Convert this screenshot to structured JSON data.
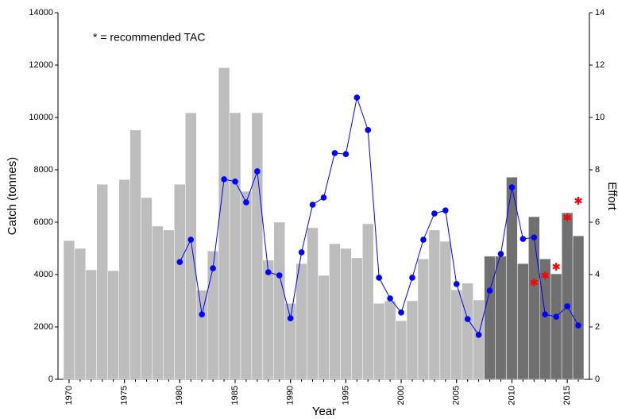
{
  "chart_data": {
    "type": "combo",
    "annotation": "* = recommended TAC",
    "xlabel": "Year",
    "ylabel": "Catch (tonnes)",
    "y2label": "Effort",
    "xlim": [
      1969,
      2017
    ],
    "xticks": [
      1970,
      1975,
      1980,
      1985,
      1990,
      1995,
      2000,
      2005,
      2010,
      2015
    ],
    "ylim": [
      0,
      14000
    ],
    "yticks": [
      0,
      2000,
      4000,
      6000,
      8000,
      10000,
      12000,
      14000
    ],
    "y2lim": [
      0,
      14
    ],
    "y2ticks": [
      0,
      2,
      4,
      6,
      8,
      10,
      12,
      14
    ],
    "series": [
      {
        "type": "bar",
        "color": "#bdbdbd",
        "x": [
          1970,
          1971,
          1972,
          1973,
          1974,
          1975,
          1976,
          1977,
          1978,
          1979,
          1980,
          1981,
          1982,
          1983,
          1984,
          1985,
          1986,
          1987,
          1988,
          1989,
          1990,
          1991,
          1992,
          1993,
          1994,
          1995,
          1996,
          1997,
          1998,
          1999,
          2000,
          2001,
          2002,
          2003,
          2004,
          2005,
          2006,
          2007
        ],
        "values": [
          5300,
          5000,
          4180,
          7450,
          4150,
          7630,
          9520,
          6940,
          5850,
          5700,
          7450,
          10180,
          3400,
          4900,
          11900,
          10180,
          7180,
          10180,
          4550,
          6000,
          2900,
          4420,
          5790,
          3970,
          5180,
          5000,
          4640,
          5940,
          2900,
          3000,
          2240,
          3000,
          4600,
          5700,
          5270,
          3420,
          3670,
          3030
        ]
      },
      {
        "type": "bar",
        "color": "#707070",
        "x": [
          2008,
          2009,
          2010,
          2011,
          2012,
          2013,
          2014,
          2015,
          2016
        ],
        "values": [
          4700,
          4700,
          7720,
          4420,
          6210,
          4600,
          4030,
          6360,
          5480
        ]
      },
      {
        "type": "line",
        "axis": "y2",
        "color": "#0000ff",
        "x": [
          1980,
          1981,
          1982,
          1983,
          1984,
          1985,
          1986,
          1987,
          1988,
          1989,
          1990,
          1991,
          1992,
          1993,
          1994,
          1995,
          1996,
          1997,
          1998,
          1999,
          2000,
          2001,
          2002,
          2003,
          2004,
          2005,
          2006,
          2007,
          2008,
          2009,
          2010,
          2011,
          2012,
          2013,
          2014,
          2015,
          2016
        ],
        "values": [
          4.48,
          5.33,
          2.48,
          4.24,
          7.64,
          7.55,
          6.76,
          7.94,
          4.09,
          3.97,
          2.33,
          4.85,
          6.67,
          6.94,
          8.64,
          8.6,
          10.76,
          9.52,
          3.88,
          3.09,
          2.55,
          3.88,
          5.33,
          6.33,
          6.45,
          3.64,
          2.3,
          1.7,
          3.39,
          4.79,
          7.33,
          5.36,
          5.42,
          2.48,
          2.39,
          2.79,
          2.06
        ]
      },
      {
        "type": "scatter",
        "marker": "asterisk",
        "color": "#ff0000",
        "x": [
          2012,
          2013,
          2014,
          2015,
          2016
        ],
        "values": [
          3700,
          3970,
          4300,
          6180,
          6820
        ]
      }
    ]
  }
}
